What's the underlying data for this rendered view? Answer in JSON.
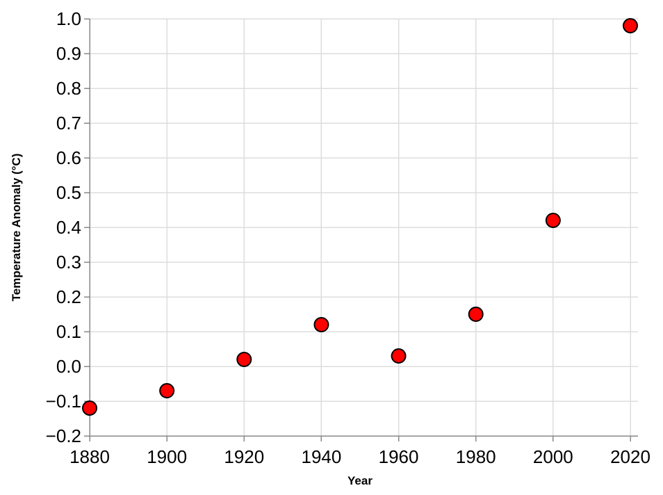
{
  "chart_data": {
    "type": "scatter",
    "title": "",
    "xlabel": "Year",
    "ylabel": "Temperature Anomaly (°C)",
    "x": [
      1880,
      1900,
      1920,
      1940,
      1960,
      1980,
      2000,
      2020
    ],
    "y": [
      -0.12,
      -0.07,
      0.02,
      0.12,
      0.03,
      0.15,
      0.42,
      0.98
    ],
    "xlim": [
      1880,
      2020
    ],
    "ylim": [
      -0.2,
      1.0
    ],
    "x_ticks": [
      1880,
      1900,
      1920,
      1940,
      1960,
      1980,
      2000,
      2020
    ],
    "x_tick_labels": [
      "1880",
      "1900",
      "1920",
      "1940",
      "1960",
      "1980",
      "2000",
      "2020"
    ],
    "y_ticks": [
      -0.2,
      -0.1,
      0.0,
      0.1,
      0.2,
      0.3,
      0.4,
      0.5,
      0.6,
      0.7,
      0.8,
      0.9,
      1.0
    ],
    "y_tick_labels": [
      "−0.2",
      "−0.1",
      "0.0",
      "0.1",
      "0.2",
      "0.3",
      "0.4",
      "0.5",
      "0.6",
      "0.7",
      "0.8",
      "0.9",
      "1.0"
    ],
    "grid": true,
    "legend": "none",
    "point_color": "#ff0000",
    "point_stroke_color": "#000000"
  }
}
